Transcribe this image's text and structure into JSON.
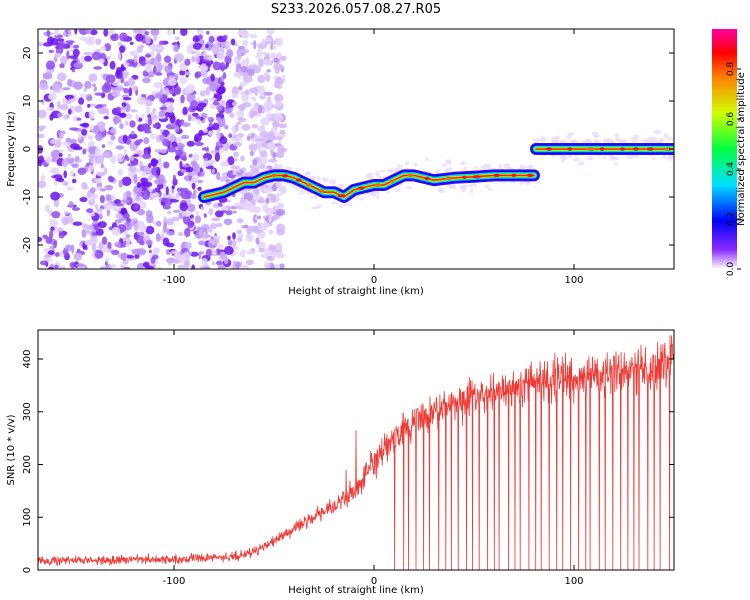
{
  "title": "S233.2026.057.08.27.R05",
  "chart_data": [
    {
      "type": "heatmap",
      "xlabel": "Height of straight line (km)",
      "ylabel": "Frequency (Hz)",
      "xlim": [
        -168,
        150
      ],
      "ylim": [
        -25,
        25
      ],
      "xticks": [
        -100,
        0,
        100
      ],
      "xtick_labels": [
        "-100",
        "0",
        "100"
      ],
      "yticks": [
        -20,
        -10,
        0,
        10,
        20
      ],
      "ytick_labels": [
        "-20",
        "-10",
        "0",
        "10",
        "20"
      ],
      "colorbar": {
        "label": "Normalized spectral amplitude",
        "range": [
          0,
          0.96
        ],
        "ticks": [
          0.0,
          0.2,
          0.4,
          0.6,
          0.8
        ],
        "tick_labels": [
          "0.0",
          "0.2",
          "0.4",
          "0.6",
          "0.8"
        ],
        "colors": [
          "#ffffff",
          "#7a00ff",
          "#0000ff",
          "#00ffff",
          "#00ff00",
          "#ffff00",
          "#ff0000",
          "#ff00ff"
        ]
      },
      "noise_region_x": [
        -168,
        -55
      ],
      "trace": {
        "x": [
          -85,
          -80,
          -75,
          -70,
          -65,
          -60,
          -55,
          -50,
          -45,
          -40,
          -35,
          -30,
          -25,
          -20,
          -15,
          -10,
          -5,
          0,
          5,
          10,
          15,
          20,
          25,
          30,
          40,
          50,
          60,
          70,
          80,
          81,
          90,
          100,
          110,
          120,
          130,
          140,
          150
        ],
        "y": [
          -10,
          -9.5,
          -9,
          -8,
          -7,
          -7,
          -6,
          -5.5,
          -5.5,
          -6,
          -7,
          -8,
          -9,
          -9,
          -10,
          -8.5,
          -8,
          -7.5,
          -7.5,
          -6.5,
          -5.5,
          -5.5,
          -6,
          -6.5,
          -6,
          -5.8,
          -5.5,
          -5.5,
          -5.5,
          0,
          0,
          0,
          0,
          0,
          0,
          0,
          0
        ]
      }
    },
    {
      "type": "line",
      "xlabel": "Height of straight line (km)",
      "ylabel": "SNR (10 * v/v)",
      "xlim": [
        -168,
        150
      ],
      "ylim": [
        0,
        455
      ],
      "xticks": [
        -100,
        0,
        100
      ],
      "xtick_labels": [
        "-100",
        "0",
        "100"
      ],
      "yticks": [
        0,
        100,
        200,
        300,
        400
      ],
      "ytick_labels": [
        "0",
        "100",
        "200",
        "300",
        "400"
      ],
      "color": "#f03a35",
      "trend": {
        "x": [
          -168,
          -100,
          -70,
          -60,
          -50,
          -40,
          -30,
          -20,
          -10,
          0,
          10,
          20,
          30,
          40,
          60,
          80,
          100,
          120,
          140,
          150
        ],
        "y": [
          18,
          20,
          25,
          35,
          55,
          80,
          100,
          120,
          150,
          200,
          250,
          280,
          300,
          320,
          340,
          355,
          365,
          375,
          385,
          400
        ]
      },
      "spikes": [
        {
          "x": -9,
          "y": 265
        },
        {
          "x": -14,
          "y": 190
        },
        {
          "x": 148,
          "y": 445
        }
      ],
      "dropouts_x_start": 10,
      "dropouts_count": 40
    }
  ]
}
